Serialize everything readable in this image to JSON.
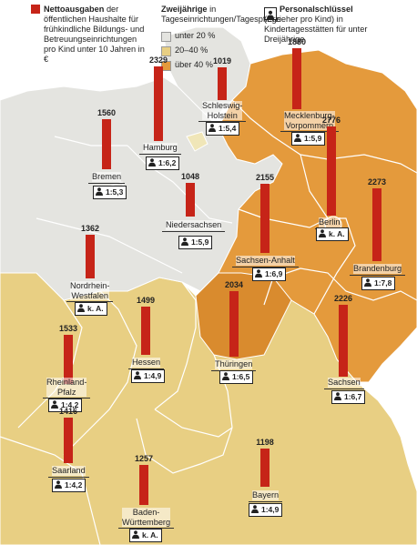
{
  "legend": {
    "spending": {
      "title": "Nettoausgaben",
      "text": " der öffentlichen Haushalte für frühkindliche Bil­dungs- und Betreuungs­einrichtungen pro Kind unter 10 Jahren in €",
      "color": "#c62418"
    },
    "care": {
      "title": "Zweijährige",
      "text": " in Tageseinrichtungen/Tagespflege",
      "items": [
        "unter 20 %",
        "20–40 %",
        "über 40 %"
      ],
      "colors": [
        "#e4e4e0",
        "#e8cf83",
        "#e49a3c"
      ]
    },
    "ratio": {
      "title": "Personalschlüssel",
      "text": "(Erzieher pro Kind) in Kindertagesstätten für unter Dreijährige",
      "icon": "person-icon"
    }
  },
  "states": [
    {
      "id": "schleswig-holstein",
      "name": "Schleswig-Holstein",
      "name_lines": [
        "Schleswig-",
        "Holstein"
      ],
      "spending": 1019,
      "ratio": "1:5,4"
    },
    {
      "id": "mecklenburg-vorpommern",
      "name": "Mecklenburg-Vorpommern",
      "name_lines": [
        "Mecklenburg-",
        "Vorpommern"
      ],
      "spending": 1880,
      "ratio": "1:5,9"
    },
    {
      "id": "hamburg",
      "name": "Hamburg",
      "name_lines": [
        "Hamburg"
      ],
      "spending": 2329,
      "ratio": "1:6,2"
    },
    {
      "id": "bremen",
      "name": "Bremen",
      "name_lines": [
        "Bremen"
      ],
      "spending": 1560,
      "ratio": "1:5,3"
    },
    {
      "id": "niedersachsen",
      "name": "Niedersachsen",
      "name_lines": [
        "Niedersachsen"
      ],
      "spending": 1048,
      "ratio": "1:5,9"
    },
    {
      "id": "berlin",
      "name": "Berlin",
      "name_lines": [
        "Berlin"
      ],
      "spending": 2776,
      "ratio": "k. A."
    },
    {
      "id": "brandenburg",
      "name": "Brandenburg",
      "name_lines": [
        "Brandenburg"
      ],
      "spending": 2273,
      "ratio": "1:7,8"
    },
    {
      "id": "sachsen-anhalt",
      "name": "Sachsen-Anhalt",
      "name_lines": [
        "Sachsen-Anhalt"
      ],
      "spending": 2155,
      "ratio": "1:6,9"
    },
    {
      "id": "nordrhein-westfalen",
      "name": "Nordrhein-Westfalen",
      "name_lines": [
        "Nordrhein-",
        "Westfalen"
      ],
      "spending": 1362,
      "ratio": "k. A."
    },
    {
      "id": "hessen",
      "name": "Hessen",
      "name_lines": [
        "Hessen"
      ],
      "spending": 1499,
      "ratio": "1:4,9"
    },
    {
      "id": "thueringen",
      "name": "Thüringen",
      "name_lines": [
        "Thüringen"
      ],
      "spending": 2034,
      "ratio": "1:6,5"
    },
    {
      "id": "sachsen",
      "name": "Sachsen",
      "name_lines": [
        "Sachsen"
      ],
      "spending": 2226,
      "ratio": "1:6,7"
    },
    {
      "id": "rheinland-pfalz",
      "name": "Rheinland-Pfalz",
      "name_lines": [
        "Rheinland-",
        "Pfalz"
      ],
      "spending": 1533,
      "ratio": "1:4,2"
    },
    {
      "id": "saarland",
      "name": "Saarland",
      "name_lines": [
        "Saarland"
      ],
      "spending": 1416,
      "ratio": "1:4,2"
    },
    {
      "id": "baden-wuerttemberg",
      "name": "Baden-Württemberg",
      "name_lines": [
        "Baden-",
        "Württemberg"
      ],
      "spending": 1257,
      "ratio": "k. A."
    },
    {
      "id": "bayern",
      "name": "Bayern",
      "name_lines": [
        "Bayern"
      ],
      "spending": 1198,
      "ratio": "1:4,9"
    }
  ]
}
